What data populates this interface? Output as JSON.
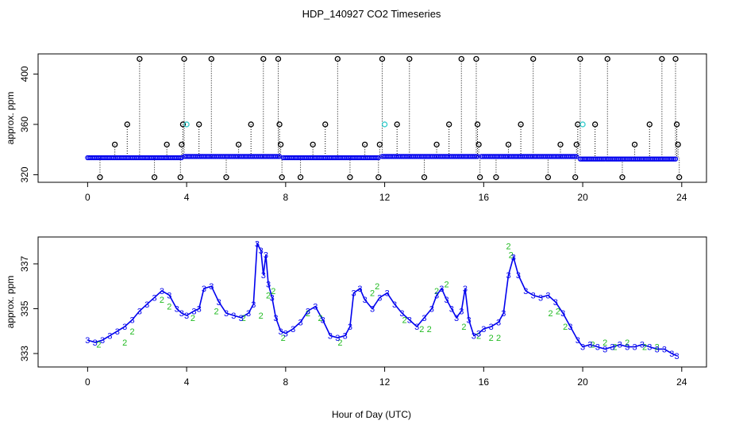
{
  "title": "HDP_140927  CO2 Timeseries",
  "xlabel": "Hour of Day (UTC)",
  "colors": {
    "blue": "#0000ee",
    "green": "#22bb22",
    "cyan": "#33cccc",
    "black": "#000000"
  },
  "chart_data": [
    {
      "type": "scatter",
      "title": "",
      "xlabel": "",
      "ylabel": "approx. ppm",
      "xlim": [
        -2,
        25
      ],
      "ylim": [
        314,
        416
      ],
      "xticks": [
        "0",
        "4",
        "8",
        "12",
        "16",
        "20",
        "24"
      ],
      "yticks": [
        "320",
        "360",
        "400"
      ],
      "grid": false,
      "legend": "none",
      "baseline_segments": [
        {
          "x0": 0.0,
          "x1": 3.8,
          "y": 333.5
        },
        {
          "x0": 3.9,
          "x1": 7.8,
          "y": 334.5
        },
        {
          "x0": 7.9,
          "x1": 11.8,
          "y": 333.5
        },
        {
          "x0": 11.9,
          "x1": 15.8,
          "y": 334.5
        },
        {
          "x0": 15.9,
          "x1": 19.8,
          "y": 334.5
        },
        {
          "x0": 19.9,
          "x1": 23.8,
          "y": 332.5
        }
      ],
      "spikes": [
        {
          "x": 0.5,
          "y": 318
        },
        {
          "x": 1.1,
          "y": 344
        },
        {
          "x": 1.6,
          "y": 360
        },
        {
          "x": 2.1,
          "y": 412
        },
        {
          "x": 2.7,
          "y": 318
        },
        {
          "x": 3.2,
          "y": 344
        },
        {
          "x": 3.75,
          "y": 318
        },
        {
          "x": 3.8,
          "y": 344
        },
        {
          "x": 3.85,
          "y": 360
        },
        {
          "x": 3.9,
          "y": 412
        },
        {
          "x": 4.5,
          "y": 360
        },
        {
          "x": 5.0,
          "y": 412
        },
        {
          "x": 5.6,
          "y": 318
        },
        {
          "x": 6.1,
          "y": 344
        },
        {
          "x": 6.6,
          "y": 360
        },
        {
          "x": 7.1,
          "y": 412
        },
        {
          "x": 7.7,
          "y": 412
        },
        {
          "x": 7.75,
          "y": 360
        },
        {
          "x": 7.8,
          "y": 344
        },
        {
          "x": 7.85,
          "y": 318
        },
        {
          "x": 8.6,
          "y": 318
        },
        {
          "x": 9.1,
          "y": 344
        },
        {
          "x": 9.6,
          "y": 360
        },
        {
          "x": 10.1,
          "y": 412
        },
        {
          "x": 10.6,
          "y": 318
        },
        {
          "x": 11.2,
          "y": 344
        },
        {
          "x": 11.75,
          "y": 318
        },
        {
          "x": 11.8,
          "y": 344
        },
        {
          "x": 11.9,
          "y": 412
        },
        {
          "x": 12.5,
          "y": 360
        },
        {
          "x": 13.0,
          "y": 412
        },
        {
          "x": 13.6,
          "y": 318
        },
        {
          "x": 14.1,
          "y": 344
        },
        {
          "x": 14.6,
          "y": 360
        },
        {
          "x": 15.1,
          "y": 412
        },
        {
          "x": 15.7,
          "y": 412
        },
        {
          "x": 15.75,
          "y": 360
        },
        {
          "x": 15.8,
          "y": 344
        },
        {
          "x": 15.85,
          "y": 318
        },
        {
          "x": 16.5,
          "y": 318
        },
        {
          "x": 17.0,
          "y": 344
        },
        {
          "x": 17.5,
          "y": 360
        },
        {
          "x": 18.0,
          "y": 412
        },
        {
          "x": 18.6,
          "y": 318
        },
        {
          "x": 19.1,
          "y": 344
        },
        {
          "x": 19.7,
          "y": 318
        },
        {
          "x": 19.75,
          "y": 344
        },
        {
          "x": 19.8,
          "y": 360
        },
        {
          "x": 19.9,
          "y": 412
        },
        {
          "x": 20.5,
          "y": 360
        },
        {
          "x": 21.0,
          "y": 412
        },
        {
          "x": 21.6,
          "y": 318
        },
        {
          "x": 22.1,
          "y": 344
        },
        {
          "x": 22.7,
          "y": 360
        },
        {
          "x": 23.2,
          "y": 412
        },
        {
          "x": 23.75,
          "y": 412
        },
        {
          "x": 23.8,
          "y": 360
        },
        {
          "x": 23.85,
          "y": 344
        },
        {
          "x": 23.9,
          "y": 318
        }
      ],
      "cyan_points": [
        {
          "x": 4.0,
          "y": 360
        },
        {
          "x": 12.0,
          "y": 360
        },
        {
          "x": 20.0,
          "y": 360
        }
      ]
    },
    {
      "type": "line",
      "title": "",
      "xlabel": "Hour of Day (UTC)",
      "ylabel": "approx. ppm",
      "xlim": [
        -2,
        25
      ],
      "ylim": [
        332.4,
        338.2
      ],
      "xticks": [
        "0",
        "4",
        "8",
        "12",
        "16",
        "20",
        "24"
      ],
      "yticks": [
        "333",
        "335",
        "337"
      ],
      "grid": false,
      "legend": "none",
      "marker_labels": [
        "3",
        "2"
      ],
      "series": [
        {
          "x": [
            0.0,
            0.3,
            0.6,
            0.9,
            1.2,
            1.5,
            1.8,
            2.1,
            2.4,
            2.7,
            3.0,
            3.3,
            3.6,
            3.8,
            4.0,
            4.3,
            4.5,
            4.7,
            5.0,
            5.3,
            5.6,
            5.9,
            6.2,
            6.5,
            6.7,
            6.85,
            7.0,
            7.1,
            7.2,
            7.3,
            7.45,
            7.6,
            7.8,
            8.0,
            8.3,
            8.6,
            8.9,
            9.2,
            9.5,
            9.8,
            10.1,
            10.4,
            10.6,
            10.75,
            11.0,
            11.2,
            11.5,
            11.8,
            12.1,
            12.4,
            12.7,
            13.0,
            13.3,
            13.6,
            13.9,
            14.1,
            14.3,
            14.5,
            14.7,
            14.9,
            15.1,
            15.25,
            15.4,
            15.6,
            15.8,
            16.0,
            16.3,
            16.6,
            16.8,
            17.0,
            17.2,
            17.4,
            17.7,
            18.0,
            18.3,
            18.6,
            18.9,
            19.2,
            19.5,
            19.8,
            20.0,
            20.3,
            20.6,
            20.9,
            21.2,
            21.5,
            21.8,
            22.1,
            22.4,
            22.7,
            23.0,
            23.3,
            23.6,
            23.8
          ],
          "y": [
            333.6,
            333.5,
            333.6,
            333.8,
            334.0,
            334.2,
            334.5,
            334.9,
            335.2,
            335.5,
            335.8,
            335.6,
            335.0,
            334.8,
            334.7,
            334.9,
            335.0,
            335.9,
            336.0,
            335.3,
            334.8,
            334.7,
            334.6,
            334.8,
            335.2,
            337.9,
            337.6,
            336.5,
            337.4,
            336.1,
            335.5,
            334.6,
            334.0,
            333.9,
            334.1,
            334.4,
            334.9,
            335.1,
            334.5,
            333.8,
            333.7,
            333.8,
            334.2,
            335.7,
            335.9,
            335.4,
            335.0,
            335.5,
            335.7,
            335.2,
            334.8,
            334.5,
            334.2,
            334.6,
            335.0,
            335.6,
            335.9,
            335.4,
            335.0,
            334.6,
            334.9,
            335.9,
            334.5,
            333.8,
            333.9,
            334.1,
            334.2,
            334.4,
            334.8,
            336.5,
            337.3,
            336.5,
            335.8,
            335.6,
            335.5,
            335.6,
            335.3,
            334.8,
            334.2,
            333.6,
            333.3,
            333.4,
            333.3,
            333.2,
            333.3,
            333.4,
            333.3,
            333.3,
            333.4,
            333.3,
            333.2,
            333.2,
            333.0,
            332.9
          ]
        }
      ],
      "green_x": [
        0.45,
        1.5,
        1.8,
        3.0,
        3.3,
        4.25,
        5.2,
        6.3,
        7.0,
        7.3,
        7.5,
        7.9,
        8.9,
        9.4,
        10.2,
        11.5,
        11.7,
        12.8,
        13.5,
        13.8,
        14.1,
        14.5,
        15.2,
        15.8,
        16.3,
        16.6,
        17.0,
        17.1,
        18.7,
        19.0,
        19.3,
        20.4,
        20.9,
        21.3,
        21.8,
        22.5,
        23.0
      ],
      "green_y": [
        333.4,
        333.5,
        334.0,
        335.4,
        335.1,
        334.6,
        334.9,
        334.6,
        334.7,
        335.6,
        335.8,
        333.7,
        334.8,
        334.6,
        333.5,
        335.7,
        336.0,
        334.5,
        334.1,
        334.1,
        335.8,
        336.1,
        334.2,
        333.8,
        333.7,
        333.7,
        337.8,
        337.4,
        334.8,
        334.9,
        334.2,
        333.4,
        333.5,
        333.3,
        333.5,
        333.3,
        333.3
      ]
    }
  ]
}
